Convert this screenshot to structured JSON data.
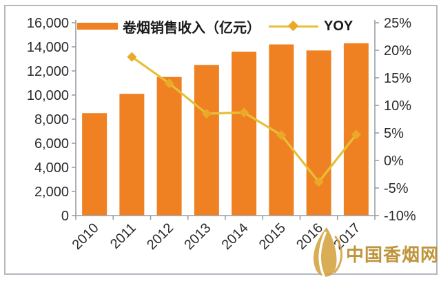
{
  "chart_data": {
    "type": "bar",
    "title": "",
    "categories": [
      "2010",
      "2011",
      "2012",
      "2013",
      "2014",
      "2015",
      "2016",
      "2017"
    ],
    "series": [
      {
        "name": "卷烟销售收入（亿元）",
        "type": "bar",
        "axis": "left",
        "color": "#F08122",
        "values": [
          8500,
          10100,
          11500,
          12500,
          13600,
          14200,
          13700,
          14300
        ]
      },
      {
        "name": "YOY",
        "type": "line",
        "axis": "right",
        "color": "#E4C03A",
        "marker": "diamond",
        "marker_color": "#EAA928",
        "values": [
          null,
          18.8,
          14.0,
          8.5,
          8.7,
          4.6,
          -3.9,
          4.7
        ]
      }
    ],
    "left_axis": {
      "min": 0,
      "max": 16000,
      "step": 2000,
      "tick_labels": [
        "16,000",
        "14,000",
        "12,000",
        "10,000",
        "8,000",
        "6,000",
        "4,000",
        "2,000",
        "0"
      ]
    },
    "right_axis": {
      "min": -10,
      "max": 25,
      "step": 5,
      "tick_labels": [
        "25%",
        "20%",
        "15%",
        "10%",
        "5%",
        "0%",
        "-5%",
        "-10%"
      ]
    },
    "legend_position": "top",
    "grid": false
  },
  "colors": {
    "axis": "#989ea6",
    "tick_text": "#2b2b2b",
    "frame": "#b3b8bf",
    "bar": "#F08122",
    "line": "#E4C03A",
    "marker": "#EAA928"
  },
  "watermark": {
    "text": "中国香烟网",
    "color": "#BE953C",
    "leaf_color": "#D3A23E"
  }
}
